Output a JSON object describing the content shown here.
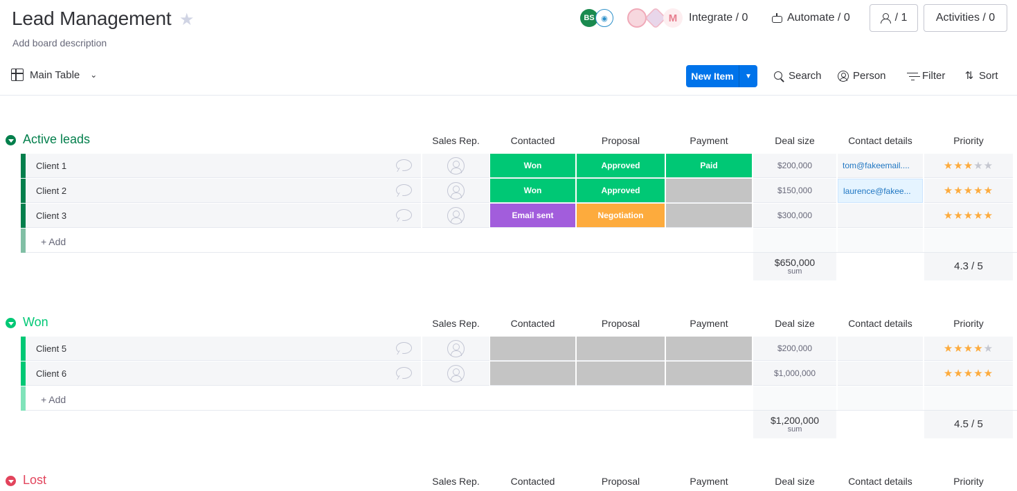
{
  "board": {
    "title": "Lead Management",
    "description": "Add board description"
  },
  "header": {
    "avatar_initials": "BS",
    "integrate_label": "Integrate / 0",
    "automate_label": "Automate / 0",
    "members_count": "/ 1",
    "activities_label": "Activities / 0",
    "gmail_glyph": "M"
  },
  "toolbar": {
    "view_label": "Main Table",
    "new_item_label": "New Item",
    "search_label": "Search",
    "person_label": "Person",
    "filter_label": "Filter",
    "sort_label": "Sort"
  },
  "columns": {
    "sales_rep": "Sales Rep.",
    "contacted": "Contacted",
    "proposal": "Proposal",
    "payment": "Payment",
    "deal_size": "Deal size",
    "contact_details": "Contact details",
    "priority": "Priority"
  },
  "colors": {
    "won": "#00c875",
    "approved": "#00c875",
    "paid": "#00c875",
    "email_sent": "#a25ddc",
    "negotiation": "#fdab3d",
    "empty_status": "#c4c4c4",
    "active_group": "#037f4c",
    "won_group": "#00c875",
    "lost_group": "#e2445c"
  },
  "groups": {
    "active": {
      "title": "Active leads",
      "add_label": "+ Add",
      "sum_value": "$650,000",
      "sum_label": "sum",
      "rating_value": "4.3  / 5",
      "rows": [
        {
          "name": "Client 1",
          "contacted": "Won",
          "proposal": "Approved",
          "payment": "Paid",
          "deal": "$200,000",
          "contact": "tom@fakeemail....",
          "rating": 3
        },
        {
          "name": "Client 2",
          "contacted": "Won",
          "proposal": "Approved",
          "payment": "",
          "deal": "$150,000",
          "contact": "laurence@fakee...",
          "rating": 5
        },
        {
          "name": "Client 3",
          "contacted": "Email sent",
          "proposal": "Negotiation",
          "payment": "",
          "deal": "$300,000",
          "contact": "",
          "rating": 5
        }
      ]
    },
    "won": {
      "title": "Won",
      "add_label": "+ Add",
      "sum_value": "$1,200,000",
      "sum_label": "sum",
      "rating_value": "4.5  / 5",
      "rows": [
        {
          "name": "Client 5",
          "contacted": "",
          "proposal": "",
          "payment": "",
          "deal": "$200,000",
          "contact": "",
          "rating": 4
        },
        {
          "name": "Client 6",
          "contacted": "",
          "proposal": "",
          "payment": "",
          "deal": "$1,000,000",
          "contact": "",
          "rating": 5
        }
      ]
    },
    "lost": {
      "title": "Lost"
    }
  }
}
